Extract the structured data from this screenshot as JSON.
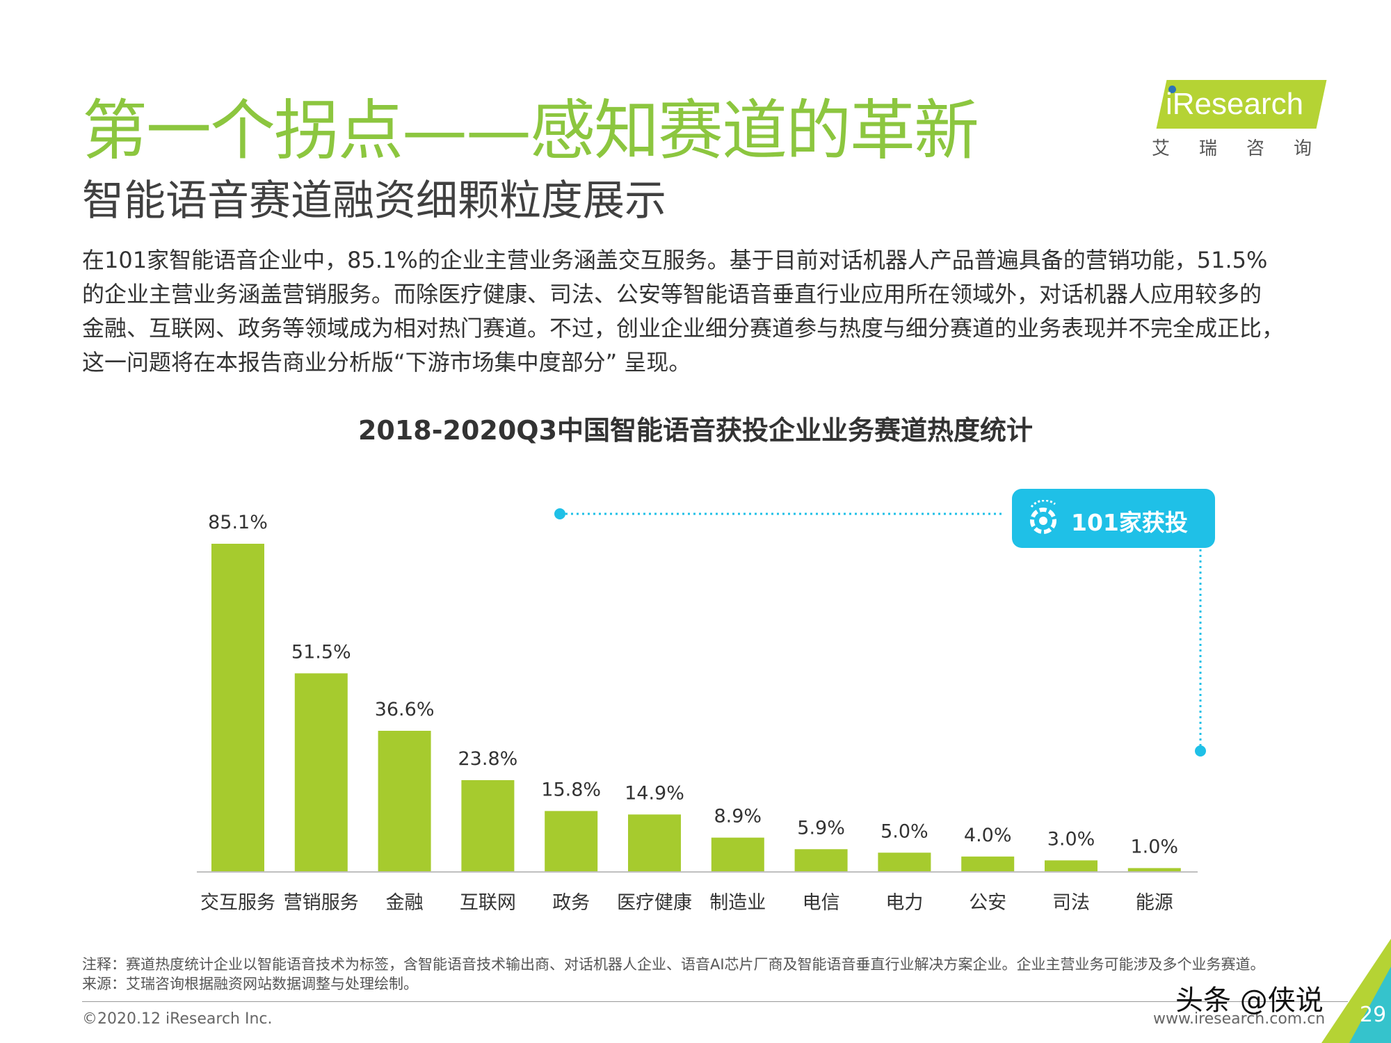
{
  "header": {
    "title": "第一个拐点——感知赛道的革新",
    "subtitle": "智能语音赛道融资细颗粒度展示"
  },
  "logo": {
    "text": "iResearch",
    "cn": "艾瑞咨询",
    "brand_color": "#b5d334"
  },
  "body": {
    "lines": [
      "在101家智能语音企业中，85.1%的企业主营业务涵盖交互服务。基于目前对话机器人产品普遍具备的营销功能，51.5%",
      "的企业主营业务涵盖营销服务。而除医疗健康、司法、公安等智能语音垂直行业应用所在领域外，对话机器人应用较多的",
      "金融、互联网、政务等领域成为相对热门赛道。不过，创业企业细分赛道参与热度与细分赛道的业务表现并不完全成正比，",
      "这一问题将在本报告商业分析版“下游市场集中度部分” 呈现。"
    ]
  },
  "badge": {
    "text": "101家获投",
    "color": "#1fc0e7"
  },
  "chart_data": {
    "type": "bar",
    "title": "2018-2020Q3中国智能语音获投企业业务赛道热度统计",
    "categories": [
      "交互服务",
      "营销服务",
      "金融",
      "互联网",
      "政务",
      "医疗健康",
      "制造业",
      "电信",
      "电力",
      "公安",
      "司法",
      "能源"
    ],
    "values": [
      85.1,
      51.5,
      36.6,
      23.8,
      15.8,
      14.9,
      8.9,
      5.9,
      5.0,
      4.0,
      3.0,
      1.0
    ],
    "labels": [
      "85.1%",
      "51.5%",
      "36.6%",
      "23.8%",
      "15.8%",
      "14.9%",
      "8.9%",
      "5.9%",
      "5.0%",
      "4.0%",
      "3.0%",
      "1.0%"
    ],
    "bar_color": "#a6cb2e",
    "xlabel": "",
    "ylabel": "",
    "ylim": [
      0,
      85.1
    ],
    "grid": false
  },
  "notes": {
    "note": "注释：赛道热度统计企业以智能语音技术为标签，含智能语音技术输出商、对话机器人企业、语音AI芯片厂商及智能语音垂直行业解决方案企业。企业主营业务可能涉及多个业务赛道。",
    "source": "来源：艾瑞咨询根据融资网站数据调整与处理绘制。"
  },
  "footer": {
    "copyright": "©2020.12 iResearch Inc.",
    "website": "www.iresearch.com.cn",
    "page": "29",
    "watermark": "头条 @侠说"
  }
}
